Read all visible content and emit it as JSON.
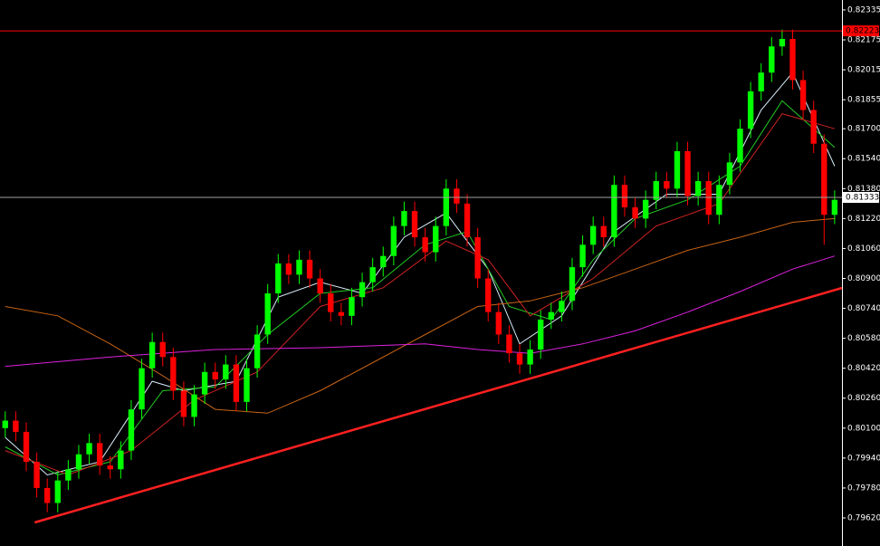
{
  "chart_data": {
    "type": "candlestick",
    "up_color": "#00ff00",
    "down_color": "#ff0000",
    "xlim": [
      -0.5,
      79.7
    ],
    "ylim": [
      0.7947,
      0.82388
    ],
    "yticks": [
      {
        "value": 0.82335,
        "label": "0.82335"
      },
      {
        "value": 0.82175,
        "label": "0.82175"
      },
      {
        "value": 0.82015,
        "label": "0.82015"
      },
      {
        "value": 0.81855,
        "label": "0.81855"
      },
      {
        "value": 0.817,
        "label": "0.81700"
      },
      {
        "value": 0.8154,
        "label": "0.81540"
      },
      {
        "value": 0.8138,
        "label": "0.81380"
      },
      {
        "value": 0.8122,
        "label": "0.81220"
      },
      {
        "value": 0.8106,
        "label": "0.81060"
      },
      {
        "value": 0.809,
        "label": "0.80900"
      },
      {
        "value": 0.8074,
        "label": "0.80740"
      },
      {
        "value": 0.8058,
        "label": "0.80580"
      },
      {
        "value": 0.8042,
        "label": "0.80420"
      },
      {
        "value": 0.8026,
        "label": "0.80260"
      },
      {
        "value": 0.801,
        "label": "0.80100"
      },
      {
        "value": 0.7994,
        "label": "0.79940"
      },
      {
        "value": 0.7978,
        "label": "0.79780"
      },
      {
        "value": 0.7962,
        "label": "0.79620"
      }
    ],
    "candles": [
      [
        0.801,
        0.8019,
        0.8005,
        0.8014
      ],
      [
        0.8014,
        0.8019,
        0.8003,
        0.8008
      ],
      [
        0.8008,
        0.8013,
        0.7987,
        0.7992
      ],
      [
        0.7992,
        0.7997,
        0.7973,
        0.7978
      ],
      [
        0.7978,
        0.7983,
        0.7965,
        0.797
      ],
      [
        0.797,
        0.7987,
        0.7965,
        0.7982
      ],
      [
        0.7982,
        0.7993,
        0.7977,
        0.7988
      ],
      [
        0.7988,
        0.8001,
        0.7983,
        0.7996
      ],
      [
        0.7996,
        0.8007,
        0.7991,
        0.8002
      ],
      [
        0.8002,
        0.8007,
        0.7985,
        0.799
      ],
      [
        0.799,
        0.7995,
        0.7983,
        0.7988
      ],
      [
        0.7988,
        0.8003,
        0.7983,
        0.7998
      ],
      [
        0.7998,
        0.8025,
        0.7993,
        0.802
      ],
      [
        0.802,
        0.8047,
        0.8015,
        0.8042
      ],
      [
        0.8042,
        0.8061,
        0.8037,
        0.8056
      ],
      [
        0.8056,
        0.8061,
        0.8043,
        0.8048
      ],
      [
        0.8048,
        0.8053,
        0.8025,
        0.803
      ],
      [
        0.803,
        0.8035,
        0.8011,
        0.8016
      ],
      [
        0.8016,
        0.8033,
        0.8011,
        0.8028
      ],
      [
        0.8028,
        0.8045,
        0.8023,
        0.804
      ],
      [
        0.804,
        0.8045,
        0.8031,
        0.8036
      ],
      [
        0.8036,
        0.8049,
        0.8031,
        0.8044
      ],
      [
        0.8044,
        0.8049,
        0.8019,
        0.8024
      ],
      [
        0.8024,
        0.8047,
        0.8019,
        0.8042
      ],
      [
        0.8042,
        0.8065,
        0.8037,
        0.806
      ],
      [
        0.806,
        0.8087,
        0.8055,
        0.8082
      ],
      [
        0.8082,
        0.8103,
        0.8077,
        0.8098
      ],
      [
        0.8098,
        0.8103,
        0.8087,
        0.8092
      ],
      [
        0.8092,
        0.8105,
        0.8087,
        0.81
      ],
      [
        0.81,
        0.8105,
        0.8085,
        0.809
      ],
      [
        0.809,
        0.8095,
        0.8077,
        0.8082
      ],
      [
        0.8082,
        0.8087,
        0.8067,
        0.8072
      ],
      [
        0.8072,
        0.8077,
        0.8065,
        0.807
      ],
      [
        0.807,
        0.8085,
        0.8065,
        0.808
      ],
      [
        0.808,
        0.8093,
        0.8075,
        0.8088
      ],
      [
        0.8088,
        0.8101,
        0.8083,
        0.8096
      ],
      [
        0.8096,
        0.8107,
        0.8091,
        0.8102
      ],
      [
        0.8102,
        0.8123,
        0.8097,
        0.8118
      ],
      [
        0.8118,
        0.8131,
        0.8113,
        0.8126
      ],
      [
        0.8126,
        0.8131,
        0.8107,
        0.8112
      ],
      [
        0.8112,
        0.8117,
        0.8099,
        0.8104
      ],
      [
        0.8104,
        0.8123,
        0.8099,
        0.8118
      ],
      [
        0.8118,
        0.8143,
        0.8113,
        0.8138
      ],
      [
        0.8138,
        0.8143,
        0.8125,
        0.813
      ],
      [
        0.813,
        0.8135,
        0.8107,
        0.8112
      ],
      [
        0.8112,
        0.8117,
        0.8085,
        0.809
      ],
      [
        0.809,
        0.8095,
        0.8067,
        0.8072
      ],
      [
        0.8072,
        0.8077,
        0.8055,
        0.806
      ],
      [
        0.806,
        0.8065,
        0.8045,
        0.805
      ],
      [
        0.805,
        0.8055,
        0.8039,
        0.8044
      ],
      [
        0.8044,
        0.8057,
        0.8039,
        0.8052
      ],
      [
        0.8052,
        0.8073,
        0.8047,
        0.8068
      ],
      [
        0.8068,
        0.8077,
        0.8063,
        0.8072
      ],
      [
        0.8072,
        0.8083,
        0.8067,
        0.8078
      ],
      [
        0.8078,
        0.8101,
        0.8073,
        0.8096
      ],
      [
        0.8096,
        0.8113,
        0.8091,
        0.8108
      ],
      [
        0.8108,
        0.8123,
        0.8103,
        0.8118
      ],
      [
        0.8118,
        0.8123,
        0.8107,
        0.8112
      ],
      [
        0.8112,
        0.8145,
        0.8107,
        0.814
      ],
      [
        0.814,
        0.8145,
        0.8123,
        0.8128
      ],
      [
        0.8128,
        0.8133,
        0.8117,
        0.8122
      ],
      [
        0.8122,
        0.8137,
        0.8117,
        0.8132
      ],
      [
        0.8132,
        0.8147,
        0.8127,
        0.8142
      ],
      [
        0.8142,
        0.8147,
        0.8133,
        0.8138
      ],
      [
        0.8138,
        0.8163,
        0.8133,
        0.8158
      ],
      [
        0.8158,
        0.8163,
        0.8129,
        0.8134
      ],
      [
        0.8134,
        0.8147,
        0.8129,
        0.8142
      ],
      [
        0.8142,
        0.8147,
        0.8119,
        0.8124
      ],
      [
        0.8124,
        0.8145,
        0.8119,
        0.814
      ],
      [
        0.814,
        0.8157,
        0.8135,
        0.8152
      ],
      [
        0.8152,
        0.8175,
        0.8147,
        0.817
      ],
      [
        0.817,
        0.8195,
        0.8165,
        0.819
      ],
      [
        0.819,
        0.8205,
        0.8185,
        0.82
      ],
      [
        0.82,
        0.8219,
        0.8195,
        0.8214
      ],
      [
        0.8214,
        0.8223,
        0.8209,
        0.8218
      ],
      [
        0.8218,
        0.8223,
        0.8191,
        0.8196
      ],
      [
        0.8196,
        0.8201,
        0.8175,
        0.818
      ],
      [
        0.818,
        0.8185,
        0.8157,
        0.8162
      ],
      [
        0.8162,
        0.8167,
        0.8108,
        0.8124
      ],
      [
        0.8124,
        0.8137,
        0.8119,
        0.8132
      ]
    ],
    "lines": [
      {
        "color": "#d8eefc",
        "x": [
          0,
          4,
          9,
          14,
          17,
          22,
          26,
          30,
          34,
          38,
          42,
          46,
          49,
          53,
          58,
          63,
          68,
          72,
          75,
          79
        ],
        "values": [
          0.8005,
          0.7985,
          0.7992,
          0.8035,
          0.803,
          0.8035,
          0.808,
          0.8088,
          0.8082,
          0.8112,
          0.8125,
          0.8095,
          0.8055,
          0.807,
          0.8115,
          0.8135,
          0.8135,
          0.818,
          0.82,
          0.815
        ]
      },
      {
        "color": "#22cc22",
        "x": [
          0,
          5,
          10,
          15,
          20,
          25,
          30,
          35,
          40,
          44,
          48,
          52,
          56,
          60,
          65,
          70,
          74,
          79
        ],
        "values": [
          0.8,
          0.7985,
          0.7992,
          0.803,
          0.8032,
          0.806,
          0.8082,
          0.8085,
          0.8108,
          0.8115,
          0.8075,
          0.8068,
          0.81,
          0.8122,
          0.8132,
          0.815,
          0.8185,
          0.816
        ]
      },
      {
        "color": "#cc2222",
        "x": [
          0,
          6,
          12,
          18,
          24,
          30,
          36,
          42,
          46,
          50,
          56,
          62,
          68,
          74,
          79
        ],
        "values": [
          0.7998,
          0.7985,
          0.7998,
          0.8025,
          0.804,
          0.8075,
          0.8085,
          0.811,
          0.81,
          0.807,
          0.809,
          0.8118,
          0.813,
          0.8178,
          0.817
        ]
      },
      {
        "color": "#c86414",
        "x": [
          0,
          5,
          10,
          15,
          20,
          25,
          30,
          35,
          40,
          45,
          50,
          55,
          60,
          65,
          70,
          75,
          79
        ],
        "values": [
          0.8075,
          0.807,
          0.8055,
          0.8038,
          0.802,
          0.8018,
          0.803,
          0.8045,
          0.806,
          0.8075,
          0.8078,
          0.8085,
          0.8095,
          0.8105,
          0.8112,
          0.812,
          0.8122
        ]
      },
      {
        "color": "#dd22dd",
        "x": [
          0,
          10,
          20,
          30,
          40,
          45,
          50,
          55,
          60,
          65,
          70,
          75,
          79
        ],
        "values": [
          0.8043,
          0.8048,
          0.8052,
          0.8053,
          0.8055,
          0.8052,
          0.805,
          0.8055,
          0.8062,
          0.8072,
          0.8083,
          0.8095,
          0.8102
        ]
      }
    ],
    "trendline": {
      "color": "#ff2020",
      "x": [
        2.8,
        79.7
      ],
      "values": [
        0.79596,
        0.80849
      ]
    },
    "levels": [
      {
        "value": 0.82223,
        "label": "0.82223",
        "color": "#ff0000",
        "label_bg": "#ff0000",
        "label_color": "#000000"
      },
      {
        "value": 0.81333,
        "label": "0.81333",
        "color": "#a0a0a0",
        "label_bg": "#ffffff",
        "label_color": "#000000"
      }
    ]
  }
}
